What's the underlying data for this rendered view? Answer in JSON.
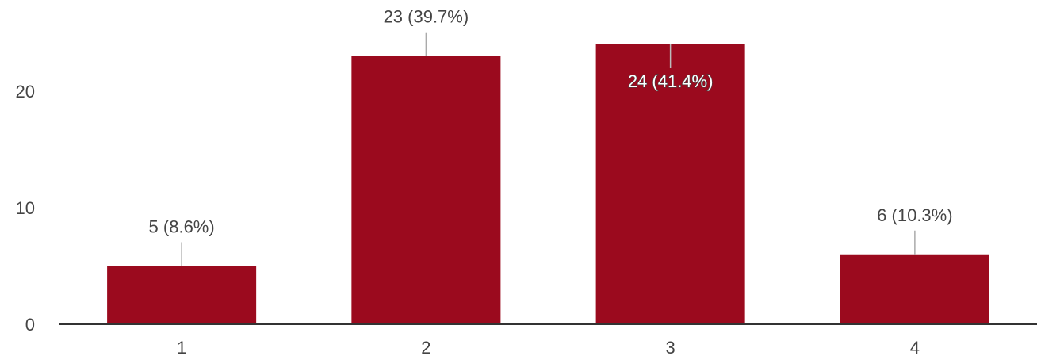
{
  "chart_data": {
    "type": "bar",
    "categories": [
      "1",
      "2",
      "3",
      "4"
    ],
    "values": [
      5,
      23,
      24,
      6
    ],
    "data_labels": [
      "5 (8.6%)",
      "23 (39.7%)",
      "24 (41.4%)",
      "6 (10.3%)"
    ],
    "yticks": [
      0,
      10,
      20
    ],
    "ylim": [
      0,
      24
    ],
    "grid": false,
    "bar_color": "#9b0a1e",
    "axis_color": "#333333",
    "leader_color": "#aaaaaa"
  }
}
